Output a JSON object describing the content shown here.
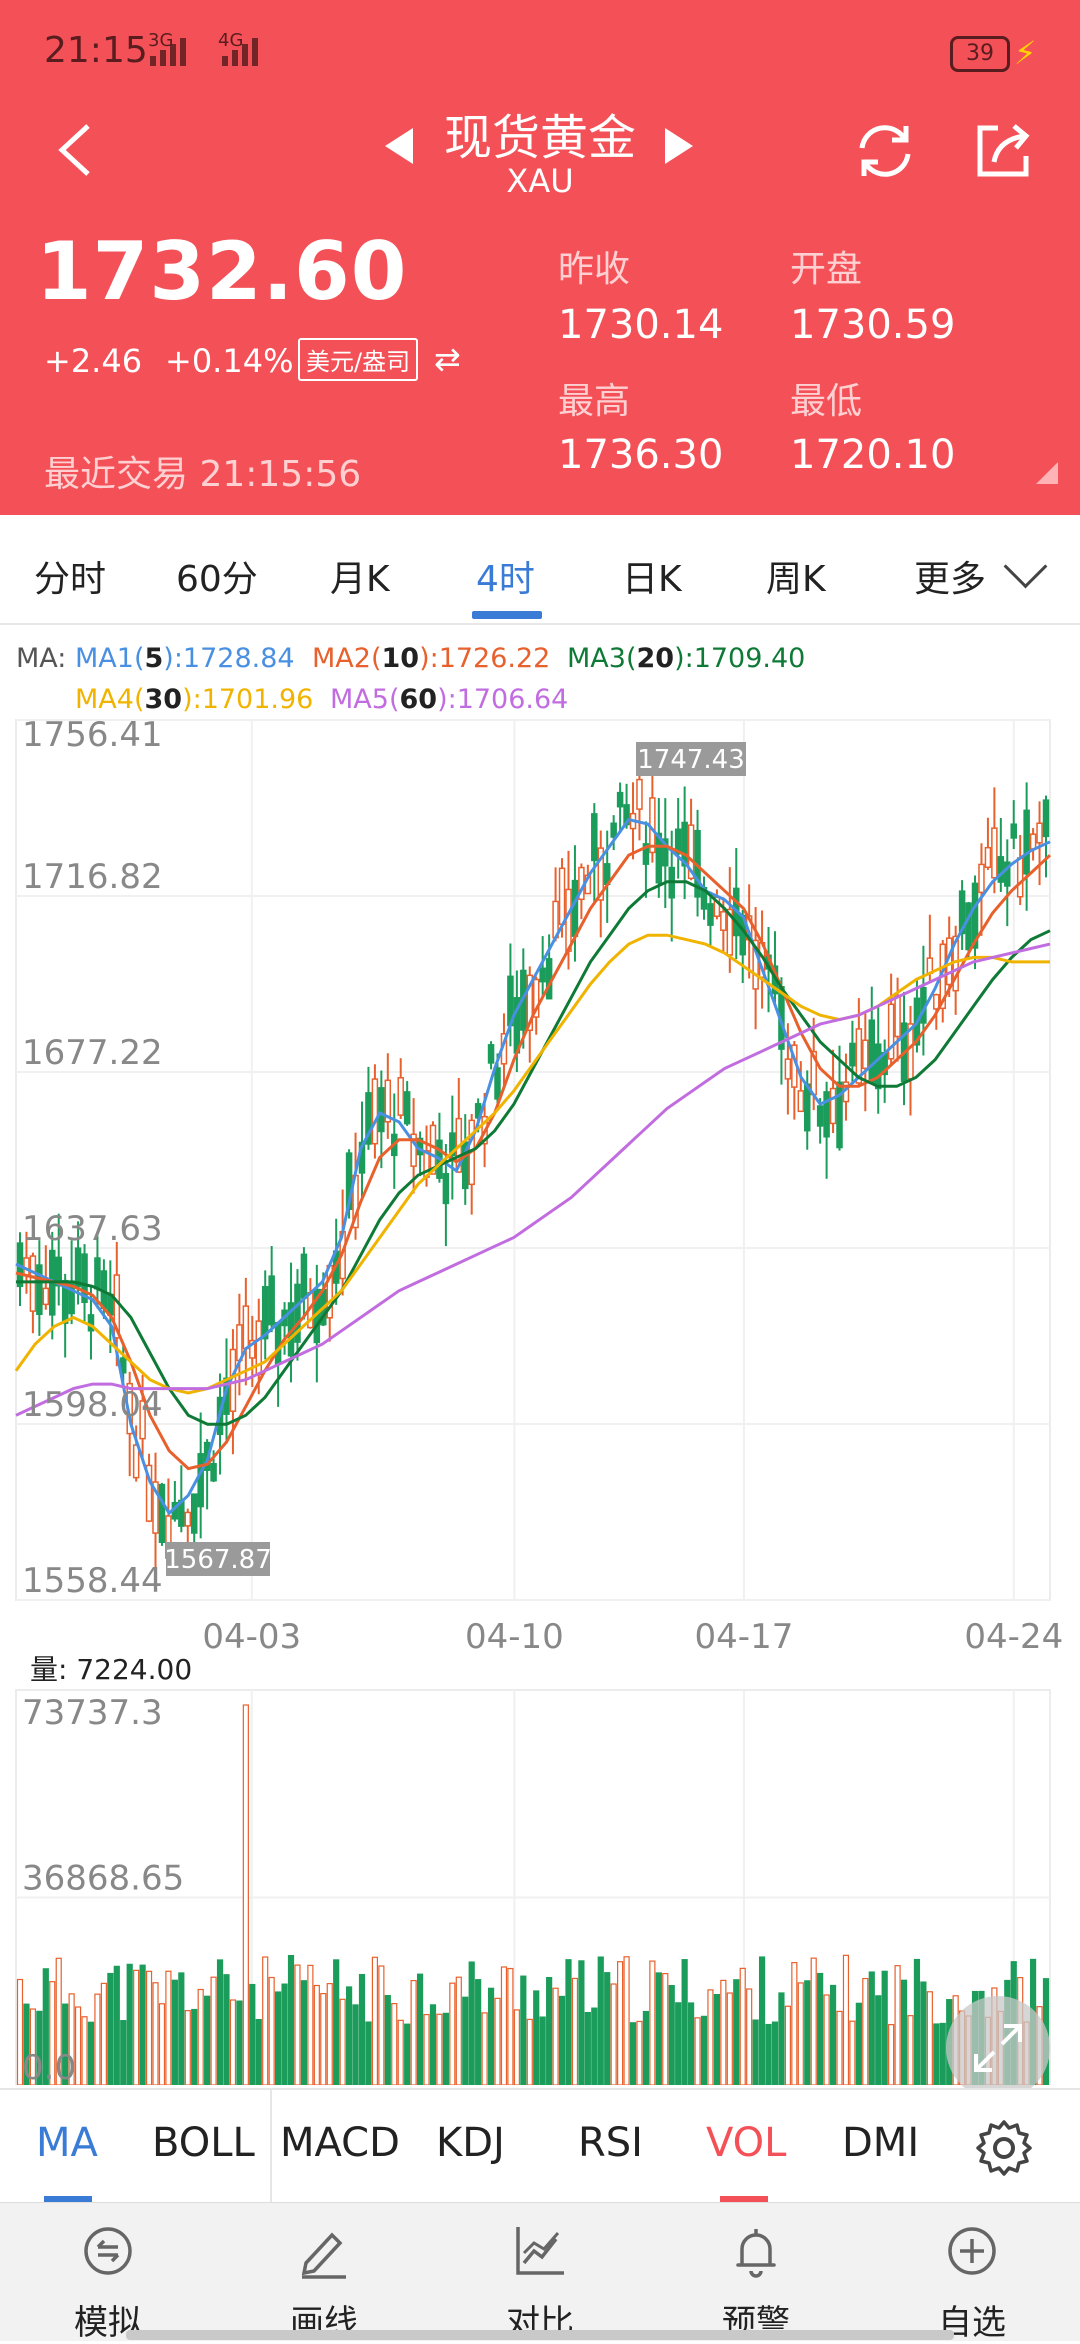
{
  "status_bar": {
    "time": "21:15",
    "net1": "3G",
    "net2": "4G",
    "battery": "39"
  },
  "header": {
    "title": "现货黄金",
    "subtitle": "XAU"
  },
  "quote": {
    "price": "1732.60",
    "change": "+2.46",
    "change_pct": "+0.14%",
    "unit": "美元/盎司",
    "last_trade": "最近交易 21:15:56",
    "prev_close_label": "昨收",
    "prev_close": "1730.14",
    "open_label": "开盘",
    "open": "1730.59",
    "high_label": "最高",
    "high": "1736.30",
    "low_label": "最低",
    "low": "1720.10"
  },
  "tabs": [
    "分时",
    "60分",
    "月K",
    "4时",
    "日K",
    "周K",
    "更多"
  ],
  "active_tab": "4时",
  "legend": {
    "prefix": "MA:",
    "ma1_name": "MA1(",
    "ma1_p": "5",
    "ma1_v": "):1728.84",
    "ma2_name": "MA2(",
    "ma2_p": "10",
    "ma2_v": "):1726.22",
    "ma3_name": "MA3(",
    "ma3_p": "20",
    "ma3_v": "):1709.40",
    "ma4_name": "MA4(",
    "ma4_p": "30",
    "ma4_v": "):1701.96",
    "ma5_name": "MA5(",
    "ma5_p": "60",
    "ma5_v": "):1706.64"
  },
  "colors": {
    "ma1": "#4a90e2",
    "ma2": "#e8602c",
    "ma3": "#0e7a36",
    "ma4": "#f0b400",
    "ma5": "#c16de0",
    "up": "#e8602c",
    "down": "#1b9c5a",
    "header": "#f35157",
    "accent": "#3a7bd5"
  },
  "chart_data": [
    {
      "type": "candlestick",
      "y_ticks": [
        "1756.41",
        "1716.82",
        "1677.22",
        "1637.63",
        "1598.04",
        "1558.44"
      ],
      "ylim": [
        1558.44,
        1756.41
      ],
      "x_ticks": [
        "04-03",
        "04-10",
        "04-17",
        "04-24"
      ],
      "max_label": "1747.43",
      "min_label": "1567.87",
      "series": [
        {
          "name": "MA1(5)",
          "values": [
            1634,
            1632,
            1630,
            1628,
            1626,
            1620,
            1598,
            1585,
            1578,
            1582,
            1590,
            1606,
            1615,
            1618,
            1622,
            1626,
            1630,
            1640,
            1660,
            1668,
            1666,
            1660,
            1658,
            1655,
            1664,
            1678,
            1690,
            1698,
            1706,
            1714,
            1722,
            1728,
            1734,
            1733,
            1728,
            1724,
            1718,
            1716,
            1712,
            1700,
            1688,
            1676,
            1670,
            1672,
            1676,
            1680,
            1684,
            1688,
            1696,
            1706,
            1714,
            1720,
            1724,
            1727,
            1729
          ]
        },
        {
          "name": "MA2(10)",
          "values": [
            1632,
            1631,
            1630,
            1629,
            1627,
            1622,
            1612,
            1600,
            1592,
            1588,
            1589,
            1594,
            1602,
            1610,
            1617,
            1622,
            1628,
            1636,
            1648,
            1658,
            1662,
            1662,
            1660,
            1657,
            1660,
            1668,
            1680,
            1690,
            1698,
            1706,
            1714,
            1720,
            1726,
            1728,
            1728,
            1726,
            1722,
            1718,
            1714,
            1706,
            1696,
            1686,
            1678,
            1674,
            1674,
            1676,
            1680,
            1684,
            1690,
            1698,
            1706,
            1713,
            1718,
            1722,
            1726
          ]
        },
        {
          "name": "MA3(20)",
          "values": [
            1630,
            1630,
            1630,
            1630,
            1629,
            1627,
            1622,
            1614,
            1606,
            1600,
            1598,
            1598,
            1600,
            1604,
            1610,
            1616,
            1622,
            1628,
            1636,
            1644,
            1650,
            1654,
            1656,
            1658,
            1660,
            1664,
            1670,
            1678,
            1686,
            1694,
            1702,
            1708,
            1714,
            1718,
            1720,
            1720,
            1718,
            1714,
            1709,
            1703,
            1696,
            1690,
            1684,
            1680,
            1676,
            1674,
            1674,
            1676,
            1680,
            1686,
            1692,
            1698,
            1703,
            1707,
            1709
          ]
        },
        {
          "name": "MA4(30)",
          "values": [
            1610,
            1616,
            1620,
            1622,
            1620,
            1616,
            1612,
            1608,
            1606,
            1605,
            1606,
            1608,
            1610,
            1612,
            1616,
            1620,
            1624,
            1628,
            1634,
            1640,
            1646,
            1652,
            1656,
            1660,
            1664,
            1668,
            1673,
            1679,
            1685,
            1691,
            1697,
            1702,
            1706,
            1708,
            1708,
            1707,
            1706,
            1704,
            1701,
            1698,
            1695,
            1692,
            1690,
            1689,
            1690,
            1692,
            1695,
            1698,
            1700,
            1702,
            1703,
            1703,
            1702,
            1702,
            1702
          ]
        },
        {
          "name": "MA5(60)",
          "values": [
            1600,
            1602,
            1604,
            1606,
            1607,
            1607,
            1606,
            1606,
            1606,
            1606,
            1606,
            1607,
            1608,
            1610,
            1612,
            1614,
            1616,
            1619,
            1622,
            1625,
            1628,
            1630,
            1632,
            1634,
            1636,
            1638,
            1640,
            1643,
            1646,
            1649,
            1653,
            1657,
            1661,
            1665,
            1669,
            1672,
            1675,
            1678,
            1680,
            1682,
            1684,
            1686,
            1688,
            1689,
            1690,
            1692,
            1694,
            1696,
            1698,
            1700,
            1702,
            1703,
            1704,
            1705,
            1706
          ]
        }
      ]
    },
    {
      "type": "bar",
      "title": "量:",
      "current": "7224.00",
      "y_ticks": [
        "73737.3",
        "36868.65",
        "0.0"
      ],
      "ylim": [
        0,
        73737.3
      ]
    }
  ],
  "indicators": [
    "MA",
    "BOLL",
    "MACD",
    "KDJ",
    "RSI",
    "VOL",
    "DMI"
  ],
  "nav": [
    {
      "label": "模拟",
      "icon": "simulate-icon"
    },
    {
      "label": "画线",
      "icon": "pen-icon"
    },
    {
      "label": "对比",
      "icon": "compare-chart-icon"
    },
    {
      "label": "预警",
      "icon": "bell-icon"
    },
    {
      "label": "自选",
      "icon": "add-circle-icon"
    }
  ]
}
